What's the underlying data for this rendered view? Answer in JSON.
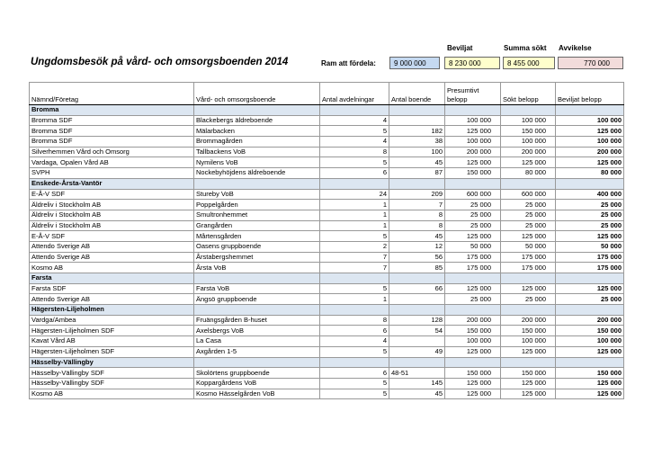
{
  "header": {
    "title": "Ungdomsbesök på vård- och omsorgsboenden 2014",
    "ram_label": "Ram att fördela:",
    "ram_value": "9 000 000",
    "summary": [
      {
        "label": "Beviljat",
        "value": "8 230 000"
      },
      {
        "label": "Summa sökt",
        "value": "8 455 000"
      },
      {
        "label": "Avvikelse",
        "value": "770 000"
      }
    ]
  },
  "table": {
    "columns": [
      "Nämnd/Företag",
      "Vård- och omsorgsboende",
      "Antal avdelningar",
      "Antal boende",
      "Presumtivt belopp",
      "Sökt belopp",
      "Beviljat belopp"
    ],
    "groups": [
      {
        "name": "Bromma",
        "rows": [
          [
            "Bromma SDF",
            "Blackebergs äldreboende",
            "4",
            null,
            "100 000",
            "100 000",
            "100 000"
          ],
          [
            "Bromma SDF",
            "Mälarbacken",
            "5",
            "182",
            "125 000",
            "150 000",
            "125 000"
          ],
          [
            "Bromma SDF",
            "Brommagården",
            "4",
            "38",
            "100 000",
            "100 000",
            "100 000"
          ],
          [
            "Silverhemmen Vård och Omsorg",
            "Tallbackens VoB",
            "8",
            "100",
            "200 000",
            "200 000",
            "200 000"
          ],
          [
            "Vardaga, Opalen Vård AB",
            "Nymilens VoB",
            "5",
            "45",
            "125 000",
            "125 000",
            "125 000"
          ],
          [
            "SVPH",
            "Nockebyhöjdens äldreboende",
            "6",
            "87",
            "150 000",
            "80 000",
            "80 000"
          ]
        ]
      },
      {
        "name": "Enskede-Årsta-Vantör",
        "rows": [
          [
            "E-Å-V SDF",
            "Stureby VoB",
            "24",
            "209",
            "600 000",
            "600 000",
            "400 000"
          ],
          [
            "Äldreliv i Stockholm AB",
            "Poppelgården",
            "1",
            "7",
            "25 000",
            "25 000",
            "25 000"
          ],
          [
            "Äldreliv i Stockholm AB",
            "Smultronhemmet",
            "1",
            "8",
            "25 000",
            "25 000",
            "25 000"
          ],
          [
            "Äldreliv i Stockholm AB",
            "Grangården",
            "1",
            "8",
            "25 000",
            "25 000",
            "25 000"
          ],
          [
            "E-Å-V SDF",
            "Mårtensgården",
            "5",
            "45",
            "125 000",
            "125 000",
            "125 000"
          ],
          [
            "Attendo Sverige AB",
            "Oasens gruppboende",
            "2",
            "12",
            "50 000",
            "50 000",
            "50 000"
          ],
          [
            "Attendo Sverige AB",
            "Årstabergshemmet",
            "7",
            "56",
            "175 000",
            "175 000",
            "175 000"
          ],
          [
            "Kosmo AB",
            "Årsta VoB",
            "7",
            "85",
            "175 000",
            "175 000",
            "175 000"
          ]
        ]
      },
      {
        "name": "Farsta",
        "rows": [
          [
            "Farsta SDF",
            "Farsta VoB",
            "5",
            "66",
            "125 000",
            "125 000",
            "125 000"
          ],
          [
            "Attendo Sverige AB",
            "Ängsö gruppboende",
            "1",
            null,
            "25 000",
            "25 000",
            "25 000"
          ]
        ]
      },
      {
        "name": "Hägersten-Liljeholmen",
        "rows": [
          [
            "Vardga/Ambea",
            "Fruängsgården B-huset",
            "8",
            "128",
            "200 000",
            "200 000",
            "200 000"
          ],
          [
            "Hägersten-Liljeholmen SDF",
            "Axelsbergs VoB",
            "6",
            "54",
            "150 000",
            "150 000",
            "150 000"
          ],
          [
            "Kavat Vård AB",
            "La Casa",
            "4",
            null,
            "100 000",
            "100 000",
            "100 000"
          ],
          [
            "Hägersten-Liljeholmen SDF",
            "Axgården 1-5",
            "5",
            "49",
            "125 000",
            "125 000",
            "125 000"
          ]
        ]
      },
      {
        "name": "Hässelby-Vällingby",
        "rows": [
          [
            "Hässelby-Vällingby SDF",
            "Skolörtens gruppboende",
            "6",
            "48-51",
            "150 000",
            "150 000",
            "150 000"
          ],
          [
            "Hässelby-Vällingby SDF",
            "Koppargårdens VoB",
            "5",
            "145",
            "125 000",
            "125 000",
            "125 000"
          ],
          [
            "Kosmo AB",
            "Kosmo Hässelgården VoB",
            "5",
            "45",
            "125 000",
            "125 000",
            "125 000"
          ]
        ]
      }
    ]
  }
}
